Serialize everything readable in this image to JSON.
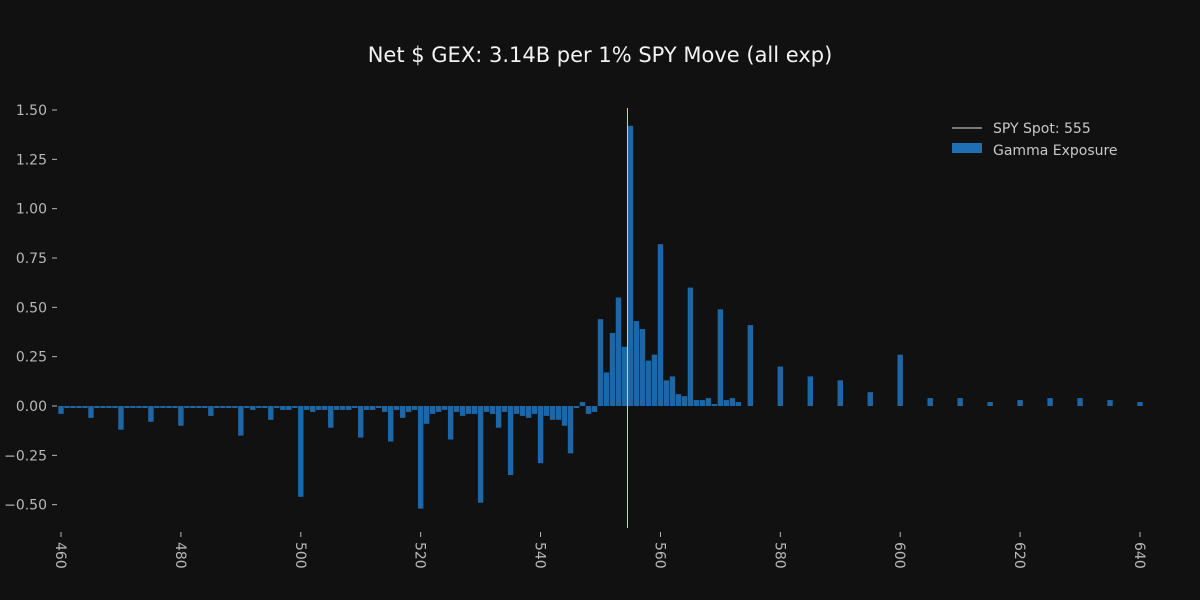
{
  "chart_data": {
    "type": "bar",
    "title": "Net $ GEX: 3.14B per 1% SPY Move (all exp)",
    "xlabel": "",
    "ylabel": "",
    "xlim": [
      460,
      640
    ],
    "ylim": [
      -0.62,
      1.52
    ],
    "xticks": [
      460,
      480,
      500,
      520,
      540,
      560,
      580,
      600,
      620,
      640
    ],
    "yticks": [
      -0.5,
      -0.25,
      0.0,
      0.25,
      0.5,
      0.75,
      1.0,
      1.25,
      1.5
    ],
    "xtick_labels": [
      "460",
      "480",
      "500",
      "520",
      "540",
      "560",
      "580",
      "600",
      "620",
      "640"
    ],
    "ytick_labels": [
      "−0.50",
      "−0.25",
      "0.00",
      "0.25",
      "0.50",
      "0.75",
      "1.00",
      "1.25",
      "1.50"
    ],
    "grid": false,
    "legend_position": "top-right",
    "colors": {
      "bars": "#1f6fb4",
      "spot_line": "#e5d94b",
      "legend_line": "#9a9a9a",
      "axis": "#b8b8b8"
    },
    "spot": {
      "name": "SPY Spot: 555",
      "x": 554.5
    },
    "series": [
      {
        "name": "Gamma Exposure",
        "points": [
          [
            460,
            -0.04
          ],
          [
            461,
            -0.01
          ],
          [
            462,
            -0.01
          ],
          [
            463,
            -0.01
          ],
          [
            464,
            -0.01
          ],
          [
            465,
            -0.06
          ],
          [
            466,
            -0.01
          ],
          [
            467,
            -0.01
          ],
          [
            468,
            -0.01
          ],
          [
            469,
            -0.01
          ],
          [
            470,
            -0.12
          ],
          [
            471,
            -0.01
          ],
          [
            472,
            -0.01
          ],
          [
            473,
            -0.01
          ],
          [
            474,
            -0.01
          ],
          [
            475,
            -0.08
          ],
          [
            476,
            -0.01
          ],
          [
            477,
            -0.01
          ],
          [
            478,
            -0.01
          ],
          [
            479,
            -0.01
          ],
          [
            480,
            -0.1
          ],
          [
            481,
            -0.01
          ],
          [
            482,
            -0.01
          ],
          [
            483,
            -0.01
          ],
          [
            484,
            -0.01
          ],
          [
            485,
            -0.05
          ],
          [
            486,
            -0.01
          ],
          [
            487,
            -0.01
          ],
          [
            488,
            -0.01
          ],
          [
            489,
            -0.01
          ],
          [
            490,
            -0.15
          ],
          [
            491,
            -0.01
          ],
          [
            492,
            -0.02
          ],
          [
            493,
            -0.01
          ],
          [
            494,
            -0.01
          ],
          [
            495,
            -0.07
          ],
          [
            496,
            -0.01
          ],
          [
            497,
            -0.02
          ],
          [
            498,
            -0.02
          ],
          [
            499,
            -0.01
          ],
          [
            500,
            -0.46
          ],
          [
            501,
            -0.02
          ],
          [
            502,
            -0.03
          ],
          [
            503,
            -0.02
          ],
          [
            504,
            -0.02
          ],
          [
            505,
            -0.11
          ],
          [
            506,
            -0.02
          ],
          [
            507,
            -0.02
          ],
          [
            508,
            -0.02
          ],
          [
            509,
            -0.01
          ],
          [
            510,
            -0.16
          ],
          [
            511,
            -0.02
          ],
          [
            512,
            -0.02
          ],
          [
            513,
            -0.01
          ],
          [
            514,
            -0.03
          ],
          [
            515,
            -0.18
          ],
          [
            516,
            -0.02
          ],
          [
            517,
            -0.06
          ],
          [
            518,
            -0.03
          ],
          [
            519,
            -0.02
          ],
          [
            520,
            -0.52
          ],
          [
            521,
            -0.09
          ],
          [
            522,
            -0.04
          ],
          [
            523,
            -0.03
          ],
          [
            524,
            -0.02
          ],
          [
            525,
            -0.17
          ],
          [
            526,
            -0.03
          ],
          [
            527,
            -0.05
          ],
          [
            528,
            -0.04
          ],
          [
            529,
            -0.04
          ],
          [
            530,
            -0.49
          ],
          [
            531,
            -0.03
          ],
          [
            532,
            -0.04
          ],
          [
            533,
            -0.11
          ],
          [
            534,
            -0.03
          ],
          [
            535,
            -0.35
          ],
          [
            536,
            -0.04
          ],
          [
            537,
            -0.05
          ],
          [
            538,
            -0.06
          ],
          [
            539,
            -0.04
          ],
          [
            540,
            -0.29
          ],
          [
            541,
            -0.05
          ],
          [
            542,
            -0.07
          ],
          [
            543,
            -0.07
          ],
          [
            544,
            -0.1
          ],
          [
            545,
            -0.24
          ],
          [
            546,
            -0.01
          ],
          [
            547,
            0.02
          ],
          [
            548,
            -0.04
          ],
          [
            549,
            -0.03
          ],
          [
            550,
            0.44
          ],
          [
            551,
            0.17
          ],
          [
            552,
            0.37
          ],
          [
            553,
            0.55
          ],
          [
            554,
            0.3
          ],
          [
            555,
            1.42
          ],
          [
            556,
            0.43
          ],
          [
            557,
            0.39
          ],
          [
            558,
            0.23
          ],
          [
            559,
            0.26
          ],
          [
            560,
            0.82
          ],
          [
            561,
            0.13
          ],
          [
            562,
            0.15
          ],
          [
            563,
            0.06
          ],
          [
            564,
            0.05
          ],
          [
            565,
            0.6
          ],
          [
            566,
            0.03
          ],
          [
            567,
            0.03
          ],
          [
            568,
            0.04
          ],
          [
            569,
            0.01
          ],
          [
            570,
            0.49
          ],
          [
            571,
            0.03
          ],
          [
            572,
            0.04
          ],
          [
            573,
            0.02
          ],
          [
            575,
            0.41
          ],
          [
            580,
            0.2
          ],
          [
            585,
            0.15
          ],
          [
            590,
            0.13
          ],
          [
            595,
            0.07
          ],
          [
            600,
            0.26
          ],
          [
            605,
            0.04
          ],
          [
            610,
            0.04
          ],
          [
            615,
            0.02
          ],
          [
            620,
            0.03
          ],
          [
            625,
            0.04
          ],
          [
            630,
            0.04
          ],
          [
            635,
            0.03
          ],
          [
            640,
            0.02
          ]
        ]
      }
    ]
  }
}
